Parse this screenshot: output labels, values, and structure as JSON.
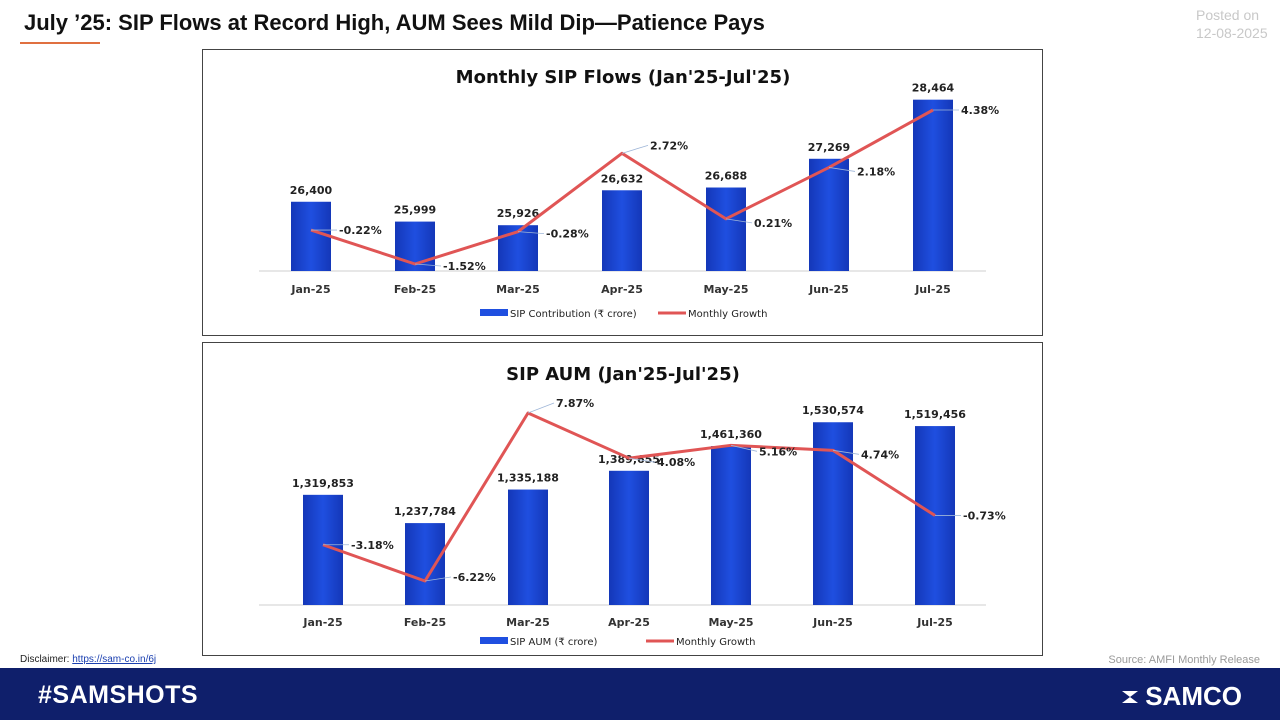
{
  "page_title": "July ’25: SIP Flows at Record High, AUM Sees Mild Dip—Patience Pays",
  "posted": {
    "label": "Posted on",
    "date": "12-08-2025"
  },
  "disclaimer": {
    "label": "Disclaimer:",
    "link": "https://sam-co.in/6j"
  },
  "source": "Source: AMFI Monthly Release",
  "footer": {
    "hashtag": "#SAMSHOTS",
    "brand": "SAMCO"
  },
  "colors": {
    "bar": "#1f4fe0",
    "bar_dark": "#1437b8",
    "line": "#e05555",
    "footer": "#0f1f6b"
  },
  "chart_data": [
    {
      "type": "bar",
      "title": "Monthly SIP Flows (Jan'25-Jul'25)",
      "categories": [
        "Jan-25",
        "Feb-25",
        "Mar-25",
        "Apr-25",
        "May-25",
        "Jun-25",
        "Jul-25"
      ],
      "series": [
        {
          "name": "SIP Contribution (₹ crore)",
          "type": "bar",
          "values": [
            26400,
            25999,
            25926,
            26632,
            26688,
            27269,
            28464
          ],
          "labels": [
            "26,400",
            "25,999",
            "25,926",
            "26,632",
            "26,688",
            "27,269",
            "28,464"
          ]
        },
        {
          "name": "Monthly Growth",
          "type": "line",
          "values": [
            -0.22,
            -1.52,
            -0.28,
            2.72,
            0.21,
            2.18,
            4.38
          ],
          "labels": [
            "-0.22%",
            "-1.52%",
            "-0.28%",
            "2.72%",
            "0.21%",
            "2.18%",
            "4.38%"
          ]
        }
      ],
      "legend": "bottom",
      "grid": false
    },
    {
      "type": "bar",
      "title": "SIP AUM (Jan'25-Jul'25)",
      "categories": [
        "Jan-25",
        "Feb-25",
        "Mar-25",
        "Apr-25",
        "May-25",
        "Jun-25",
        "Jul-25"
      ],
      "series": [
        {
          "name": "SIP AUM  (₹ crore)",
          "type": "bar",
          "values": [
            1319853,
            1237784,
            1335188,
            1389655,
            1461360,
            1530574,
            1519456
          ],
          "labels": [
            "1,319,853",
            "1,237,784",
            "1,335,188",
            "1,389,655",
            "1,461,360",
            "1,530,574",
            "1,519,456"
          ]
        },
        {
          "name": "Monthly Growth",
          "type": "line",
          "values": [
            -3.18,
            -6.22,
            7.87,
            4.08,
            5.16,
            4.74,
            -0.73
          ],
          "labels": [
            "-3.18%",
            "-6.22%",
            "7.87%",
            "4.08%",
            "5.16%",
            "4.74%",
            "-0.73%"
          ]
        }
      ],
      "legend": "bottom",
      "grid": false
    }
  ]
}
